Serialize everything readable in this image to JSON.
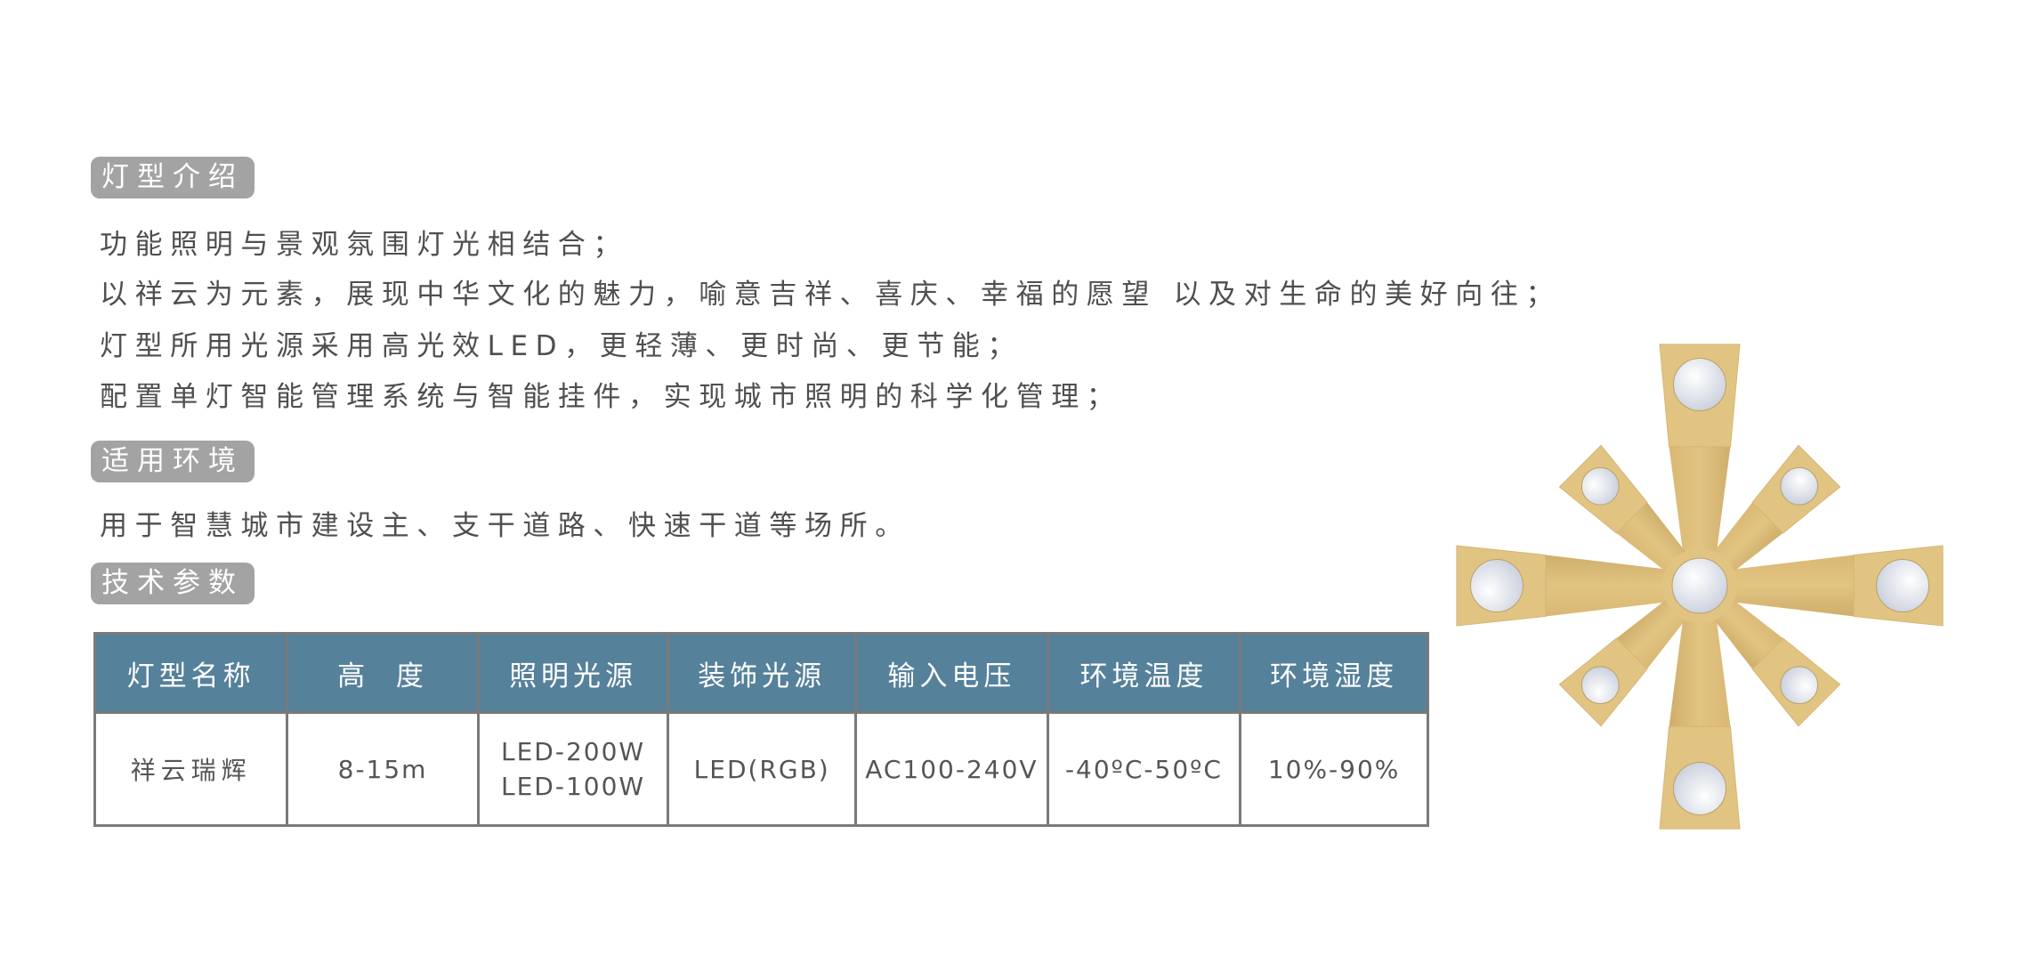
{
  "sections": [
    {
      "title": "灯型介绍",
      "lines": [
        "功能照明与景观氛围灯光相结合；",
        "以祥云为元素，展现中华文化的魅力，喻意吉祥、喜庆、幸福的愿望  以及对生命的美好向往；",
        "灯型所用光源采用高光效LED，更轻薄、更时尚、更节能；",
        "配置单灯智能管理系统与智能挂件，实现城市照明的科学化管理；"
      ]
    },
    {
      "title": "适用环境",
      "lines": [
        "用于智慧城市建设主、支干道路、快速干道等场所。"
      ]
    },
    {
      "title": "技术参数",
      "lines": []
    }
  ],
  "table": {
    "headers": [
      "灯型名称",
      "高  度",
      "照明光源",
      "装饰光源",
      "输入电压",
      "环境温度",
      "环境湿度"
    ],
    "row": [
      "祥云瑞辉",
      "8-15m",
      [
        "LED-200W",
        "LED-100W"
      ],
      "LED(RGB)",
      "AC100-240V",
      "-40ºC-50ºC",
      "10%-90%"
    ]
  },
  "colors": {
    "header_bg": "#56819b",
    "badge_bg": "#a3a3a3",
    "lamp_gold": "#e2c482",
    "bulb": "#f1f3f7"
  },
  "image": {
    "subject": "lamp-top-view-icon"
  }
}
